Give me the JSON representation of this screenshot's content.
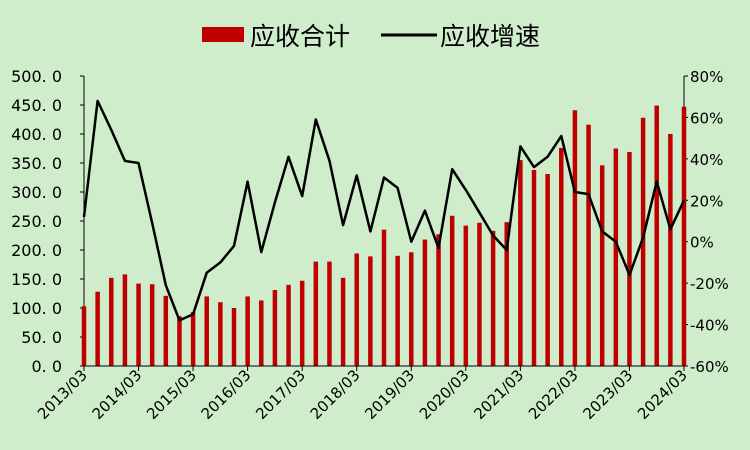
{
  "chart_data": {
    "type": "bar+line",
    "legend": {
      "position": "top",
      "bar_label": "应收合计",
      "line_label": "应收增速"
    },
    "colors": {
      "background": "#cfedcb",
      "bar": "#c00000",
      "line": "#000000"
    },
    "x": [
      "2013/03",
      "2013/06",
      "2013/09",
      "2013/12",
      "2014/03",
      "2014/06",
      "2014/09",
      "2014/12",
      "2015/03",
      "2015/06",
      "2015/09",
      "2015/12",
      "2016/03",
      "2016/06",
      "2016/09",
      "2016/12",
      "2017/03",
      "2017/06",
      "2017/09",
      "2017/12",
      "2018/03",
      "2018/06",
      "2018/09",
      "2018/12",
      "2019/03",
      "2019/06",
      "2019/09",
      "2019/12",
      "2020/03",
      "2020/06",
      "2020/09",
      "2020/12",
      "2021/03",
      "2021/06",
      "2021/09",
      "2021/12",
      "2022/03",
      "2022/06",
      "2022/09",
      "2022/12",
      "2023/03",
      "2023/06",
      "2023/09",
      "2023/12",
      "2024/03"
    ],
    "x_tick_labels": [
      "2013/03",
      "2014/03",
      "2015/03",
      "2016/03",
      "2017/03",
      "2018/03",
      "2019/03",
      "2020/03",
      "2021/03",
      "2022/03",
      "2023/03",
      "2024/03"
    ],
    "series": [
      {
        "name": "应收合计",
        "type": "bar",
        "axis": "left",
        "values": [
          103,
          128,
          152,
          158,
          142,
          141,
          121,
          86,
          93,
          120,
          110,
          100,
          120,
          113,
          131,
          140,
          147,
          180,
          180,
          152,
          194,
          189,
          235,
          190,
          196,
          218,
          227,
          259,
          242,
          247,
          233,
          248,
          355,
          338,
          331,
          376,
          441,
          416,
          346,
          375,
          369,
          428,
          449,
          400,
          447
        ]
      },
      {
        "name": "应收增速",
        "type": "line",
        "axis": "right",
        "values": [
          12,
          68,
          54,
          39,
          38,
          9,
          -21,
          -38,
          -35,
          -15,
          -10,
          -2,
          29,
          -5,
          19,
          41,
          22,
          59,
          39,
          8,
          32,
          5,
          31,
          26,
          0,
          15,
          -3,
          35,
          25,
          14,
          3,
          -4,
          46,
          36,
          41,
          51,
          24,
          23,
          5,
          0,
          -16,
          2,
          29,
          6,
          20
        ]
      }
    ],
    "y_left": {
      "min": 0,
      "max": 500,
      "ticks": [
        "0. 0",
        "50. 0",
        "100. 0",
        "150. 0",
        "200. 0",
        "250. 0",
        "300. 0",
        "350. 0",
        "400. 0",
        "450. 0",
        "500. 0"
      ]
    },
    "y_right": {
      "min": -60,
      "max": 80,
      "ticks": [
        "-60%",
        "-40%",
        "-20%",
        "0%",
        "20%",
        "40%",
        "60%",
        "80%"
      ]
    },
    "grid": false
  }
}
